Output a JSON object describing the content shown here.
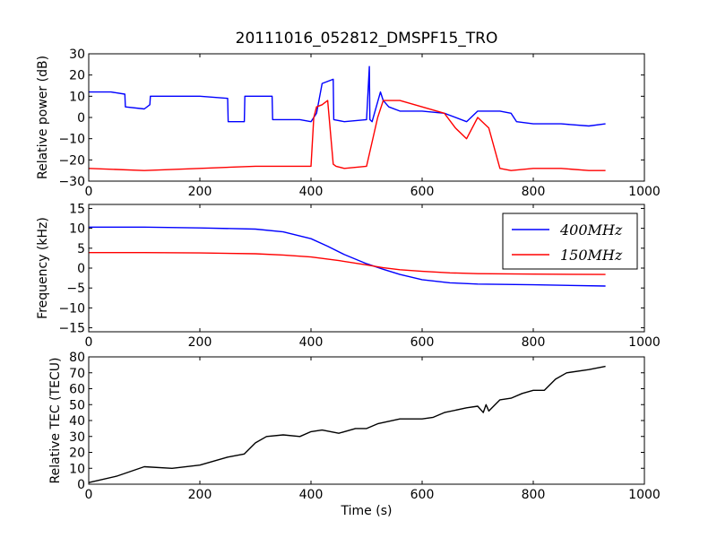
{
  "title": "20111016_052812_DMSPF15_TRO",
  "colors": {
    "blue": "#0000ff",
    "red": "#ff0000",
    "black": "#000000"
  },
  "chart_data": [
    {
      "type": "line",
      "ylabel": "Relative power (dB)",
      "xlabel": "",
      "xlim": [
        0,
        1000
      ],
      "ylim": [
        -30,
        30
      ],
      "xticks": [
        "0",
        "200",
        "400",
        "600",
        "800",
        "1000"
      ],
      "yticks": [
        "−30",
        "−20",
        "−10",
        "0",
        "10",
        "20",
        "30"
      ],
      "grid": false,
      "series": [
        {
          "color": "#0000ff",
          "x": [
            0,
            40,
            65,
            66,
            100,
            110,
            111,
            200,
            250,
            251,
            280,
            281,
            330,
            331,
            380,
            400,
            410,
            420,
            440,
            441,
            460,
            500,
            505,
            506,
            510,
            511,
            525,
            530,
            540,
            560,
            600,
            640,
            680,
            700,
            720,
            740,
            760,
            770,
            800,
            850,
            900,
            930
          ],
          "y": [
            12,
            12,
            11,
            5,
            4,
            6,
            10,
            10,
            9,
            -2,
            -2,
            10,
            10,
            -1,
            -1,
            -2,
            2,
            16,
            18,
            -1,
            -2,
            -1,
            24,
            -1,
            -2,
            -1,
            12,
            8,
            5,
            3,
            3,
            2,
            -2,
            3,
            3,
            3,
            2,
            -2,
            -3,
            -3,
            -4,
            -3
          ]
        },
        {
          "color": "#ff0000",
          "x": [
            0,
            100,
            200,
            300,
            400,
            405,
            410,
            420,
            430,
            440,
            445,
            460,
            500,
            520,
            530,
            560,
            600,
            640,
            660,
            680,
            700,
            720,
            740,
            760,
            800,
            850,
            900,
            930
          ],
          "y": [
            -24,
            -25,
            -24,
            -23,
            -23,
            0,
            5,
            6,
            8,
            -22,
            -23,
            -24,
            -23,
            0,
            8,
            8,
            5,
            2,
            -5,
            -10,
            0,
            -5,
            -24,
            -25,
            -24,
            -24,
            -25,
            -25
          ]
        }
      ]
    },
    {
      "type": "line",
      "ylabel": "Frequency (kHz)",
      "xlabel": "",
      "xlim": [
        0,
        1000
      ],
      "ylim": [
        -16,
        16
      ],
      "xticks": [
        "0",
        "200",
        "400",
        "600",
        "800",
        "1000"
      ],
      "yticks": [
        "−15",
        "−10",
        "−5",
        "0",
        "5",
        "10",
        "15"
      ],
      "grid": false,
      "legend": "top-right",
      "series": [
        {
          "name": "400MHz",
          "color": "#0000ff",
          "x": [
            0,
            100,
            200,
            300,
            350,
            400,
            430,
            460,
            500,
            530,
            560,
            600,
            650,
            700,
            800,
            930
          ],
          "y": [
            10.3,
            10.3,
            10.1,
            9.8,
            9.1,
            7.4,
            5.5,
            3.4,
            1.1,
            -0.3,
            -1.6,
            -2.9,
            -3.7,
            -4.0,
            -4.2,
            -4.5
          ]
        },
        {
          "name": "150MHz",
          "color": "#ff0000",
          "x": [
            0,
            100,
            200,
            300,
            350,
            400,
            450,
            500,
            530,
            560,
            600,
            650,
            700,
            800,
            930
          ],
          "y": [
            3.9,
            3.9,
            3.8,
            3.6,
            3.3,
            2.8,
            1.9,
            0.8,
            0.1,
            -0.4,
            -0.8,
            -1.2,
            -1.4,
            -1.5,
            -1.6
          ]
        }
      ]
    },
    {
      "type": "line",
      "ylabel": "Relative TEC (TECU)",
      "xlabel": "Time (s)",
      "xlim": [
        0,
        1000
      ],
      "ylim": [
        0,
        80
      ],
      "xticks": [
        "0",
        "200",
        "400",
        "600",
        "800",
        "1000"
      ],
      "yticks": [
        "0",
        "10",
        "20",
        "30",
        "40",
        "50",
        "60",
        "70",
        "80"
      ],
      "grid": false,
      "series": [
        {
          "color": "#000000",
          "x": [
            0,
            50,
            100,
            150,
            200,
            250,
            280,
            300,
            320,
            350,
            380,
            400,
            420,
            450,
            480,
            500,
            520,
            560,
            600,
            620,
            640,
            680,
            700,
            710,
            715,
            720,
            740,
            760,
            780,
            800,
            820,
            840,
            860,
            900,
            930
          ],
          "y": [
            1,
            5,
            11,
            10,
            12,
            17,
            19,
            26,
            30,
            31,
            30,
            33,
            34,
            32,
            35,
            35,
            38,
            41,
            41,
            42,
            45,
            48,
            49,
            45,
            50,
            46,
            53,
            54,
            57,
            59,
            59,
            66,
            70,
            72,
            74
          ]
        }
      ]
    }
  ]
}
